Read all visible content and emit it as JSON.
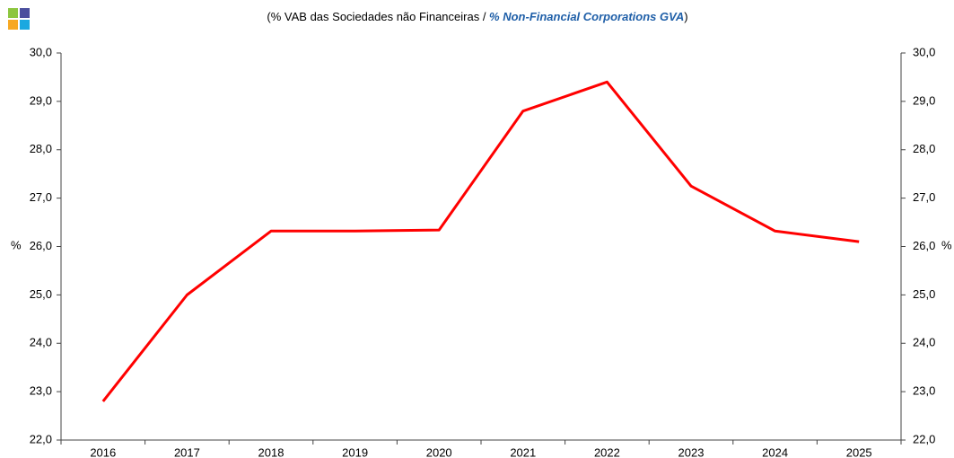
{
  "chart_data": {
    "type": "line",
    "title": [
      "(% VAB das Sociedades não Financeiras / ",
      "% Non-Financial Corporations GVA",
      ")"
    ],
    "ylabel": "%",
    "y2label": "%",
    "categories": [
      "2016",
      "2017",
      "2018",
      "2019",
      "2020",
      "2021",
      "2022",
      "2023",
      "2024",
      "2025"
    ],
    "series": [
      {
        "name": "% VAB",
        "color": "#ff0000",
        "values": [
          22.8,
          25.0,
          26.32,
          26.32,
          26.34,
          28.8,
          29.4,
          27.25,
          26.32,
          26.1
        ]
      }
    ],
    "ylim": [
      22,
      30
    ],
    "yticks": [
      {
        "value": 22,
        "label": "22,0"
      },
      {
        "value": 23,
        "label": "23,0"
      },
      {
        "value": 24,
        "label": "24,0"
      },
      {
        "value": 25,
        "label": "25,0"
      },
      {
        "value": 26,
        "label": "26,0"
      },
      {
        "value": 27,
        "label": "27,0"
      },
      {
        "value": 28,
        "label": "28,0"
      },
      {
        "value": 29,
        "label": "29,0"
      },
      {
        "value": 30,
        "label": "30,0"
      }
    ],
    "y2lim": [
      22,
      30
    ],
    "y2ticks": [
      {
        "value": 22,
        "label": "22,0"
      },
      {
        "value": 23,
        "label": "23,0"
      },
      {
        "value": 24,
        "label": "24,0"
      },
      {
        "value": 25,
        "label": "25,0"
      },
      {
        "value": 26,
        "label": "26,0"
      },
      {
        "value": 27,
        "label": "27,0"
      },
      {
        "value": 28,
        "label": "28,0"
      },
      {
        "value": 29,
        "label": "29,0"
      },
      {
        "value": 30,
        "label": "30,0"
      }
    ],
    "grid": false
  }
}
